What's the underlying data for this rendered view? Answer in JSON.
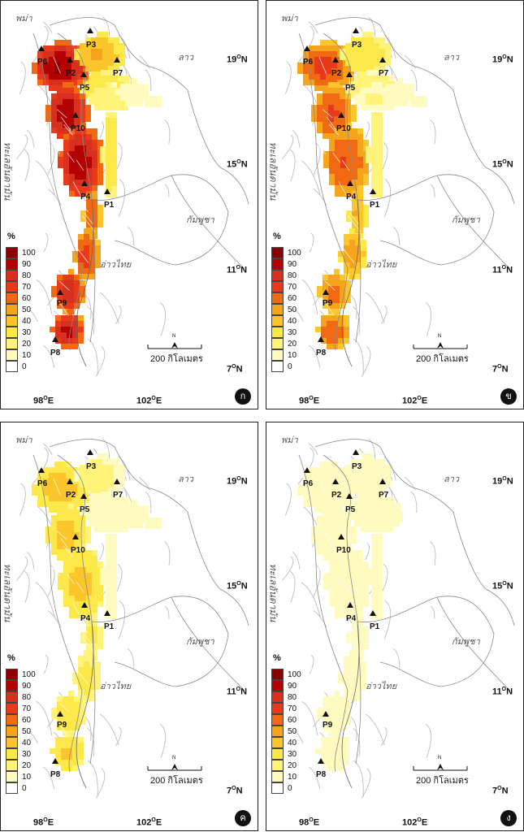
{
  "legend": {
    "unit": "%",
    "levels": [
      "100",
      "90",
      "80",
      "70",
      "60",
      "50",
      "40",
      "30",
      "20",
      "10",
      "0"
    ],
    "colors": [
      "#8b0000",
      "#b30000",
      "#d7301f",
      "#e83a1b",
      "#f16913",
      "#f7a41d",
      "#fcc52c",
      "#fde84a",
      "#fff37a",
      "#fffabf",
      "#ffffff"
    ]
  },
  "labels": {
    "burma": "พม่า",
    "laos": "ลาว",
    "andaman": "ทะเลอันดามัน",
    "cambodia": "กัมพูชา",
    "gulf": "อ่าวไทย",
    "lat19": "19",
    "lat15": "15",
    "lat11": "11",
    "lat7": "7",
    "lon98": "98",
    "lon102": "102",
    "deg": "O",
    "north": "N",
    "east": "E",
    "scale": "200 กิโลเมตร",
    "north_arrow": "N"
  },
  "stations": [
    "P1",
    "P2",
    "P3",
    "P4",
    "P5",
    "P6",
    "P7",
    "P8",
    "P9",
    "P10"
  ],
  "panels": [
    {
      "id": "panel-a",
      "badge": "ก",
      "intensity": 1.0
    },
    {
      "id": "panel-b",
      "badge": "ข",
      "intensity": 0.72
    },
    {
      "id": "panel-c",
      "badge": "ค",
      "intensity": 0.42
    },
    {
      "id": "panel-d",
      "badge": "ง",
      "intensity": 0.15
    }
  ]
}
